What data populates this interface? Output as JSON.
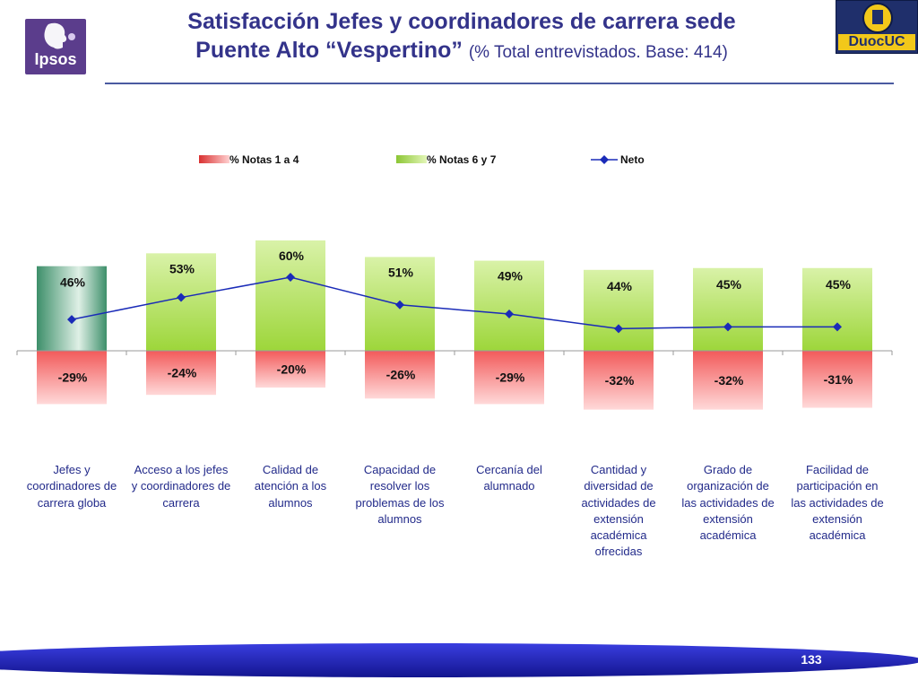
{
  "header": {
    "title_line1": "Satisfacción Jefes y coordinadores de carrera sede",
    "title_line2": "Puente Alto “Vespertino”",
    "subtitle": "(% Total entrevistados. Base: 414)"
  },
  "logos": {
    "left": "Ipsos",
    "right": "DuocUC"
  },
  "chart_data": {
    "type": "bar",
    "categories": [
      "Jefes y coordinadores de carrera globa",
      "Acceso a los jefes y coordinadores de carrera",
      "Calidad de atención a los alumnos",
      "Capacidad de resolver los problemas de los alumnos",
      "Cercanía del alumnado",
      "Cantidad y diversidad de actividades de extensión académica ofrecidas",
      "Grado de organización de las actividades de extensión académica",
      "Facilidad de participación en las actividades de extensión académica"
    ],
    "category_lines": [
      [
        "Jefes y",
        "coordinadores de",
        "carrera globa"
      ],
      [
        "Acceso a los jefes",
        "y coordinadores de",
        "carrera"
      ],
      [
        "Calidad de",
        "atención a los",
        "alumnos"
      ],
      [
        "Capacidad de",
        "resolver los",
        "problemas de los",
        "alumnos"
      ],
      [
        "Cercanía del",
        "alumnado"
      ],
      [
        "Cantidad y",
        "diversidad de",
        "actividades de",
        "extensión",
        "académica",
        "ofrecidas"
      ],
      [
        "Grado de",
        "organización de",
        "las actividades de",
        "extensión",
        "académica"
      ],
      [
        "Facilidad de",
        "participación en",
        "las actividades de",
        "extensión",
        "académica"
      ]
    ],
    "series": [
      {
        "name": "% Notas 1 a 4",
        "values": [
          -29,
          -24,
          -20,
          -26,
          -29,
          -32,
          -32,
          -31
        ],
        "labels": [
          "-29%",
          "-24%",
          "-20%",
          "-26%",
          "-29%",
          "-32%",
          "-32%",
          "-31%"
        ]
      },
      {
        "name": "% Notas 6 y 7",
        "values": [
          46,
          53,
          60,
          51,
          49,
          44,
          45,
          45
        ],
        "labels": [
          "46%",
          "53%",
          "60%",
          "51%",
          "49%",
          "44%",
          "45%",
          "45%"
        ]
      },
      {
        "name": "Neto",
        "values": [
          17,
          29,
          40,
          25,
          20,
          12,
          13,
          13
        ]
      }
    ],
    "ylim": [
      -35,
      62
    ],
    "grid": false,
    "legend": "top",
    "xlabel": "",
    "ylabel": ""
  },
  "colors": {
    "title": "#33338a",
    "red_top": "#f25a5a",
    "red_bottom": "#ffd9d9",
    "green_top": "#9dd63a",
    "green_bottom": "#d9f2a8",
    "first_bar_dark": "#3d8f6a",
    "first_bar_light": "#dff0e6",
    "line": "#1a2bb8",
    "label": "#222a8a",
    "footer": "#1c1fc4"
  },
  "footer": {
    "page_number": "133"
  }
}
